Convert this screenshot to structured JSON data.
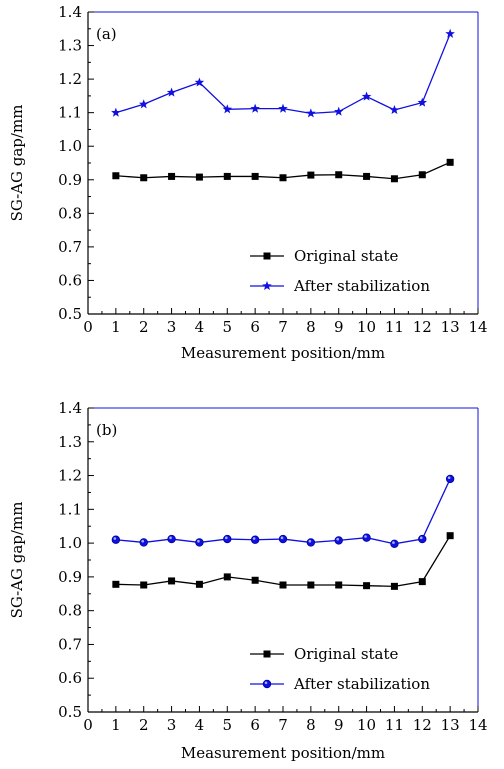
{
  "chart_data": [
    {
      "type": "line",
      "panel_label": "(a)",
      "xlabel": "Measurement position/mm",
      "ylabel": "SG-AG gap/mm",
      "xlim": [
        0,
        14
      ],
      "ylim": [
        0.5,
        1.4
      ],
      "xticks": [
        0,
        1,
        2,
        3,
        4,
        5,
        6,
        7,
        8,
        9,
        10,
        11,
        12,
        13,
        14
      ],
      "yticks": [
        "0.5",
        "0.6",
        "0.7",
        "0.8",
        "0.9",
        "1.0",
        "1.1",
        "1.2",
        "1.3",
        "1.4"
      ],
      "legend_position": "bottom-right",
      "x": [
        1,
        2,
        3,
        4,
        5,
        6,
        7,
        8,
        9,
        10,
        11,
        12,
        13
      ],
      "series": [
        {
          "name": "Original state",
          "marker": "square",
          "color": "#000000",
          "values": [
            0.912,
            0.906,
            0.91,
            0.908,
            0.91,
            0.91,
            0.906,
            0.914,
            0.915,
            0.91,
            0.903,
            0.915,
            0.952
          ]
        },
        {
          "name": "After stabilization",
          "marker": "star",
          "color": "#1010e0",
          "values": [
            1.1,
            1.125,
            1.16,
            1.19,
            1.11,
            1.112,
            1.112,
            1.098,
            1.103,
            1.148,
            1.108,
            1.13,
            1.335
          ]
        }
      ]
    },
    {
      "type": "line",
      "panel_label": "(b)",
      "xlabel": "Measurement position/mm",
      "ylabel": "SG-AG gap/mm",
      "xlim": [
        0,
        14
      ],
      "ylim": [
        0.5,
        1.4
      ],
      "xticks": [
        0,
        1,
        2,
        3,
        4,
        5,
        6,
        7,
        8,
        9,
        10,
        11,
        12,
        13,
        14
      ],
      "yticks": [
        "0.5",
        "0.6",
        "0.7",
        "0.8",
        "0.9",
        "1.0",
        "1.1",
        "1.2",
        "1.3",
        "1.4"
      ],
      "legend_position": "bottom-right",
      "x": [
        1,
        2,
        3,
        4,
        5,
        6,
        7,
        8,
        9,
        10,
        11,
        12,
        13
      ],
      "series": [
        {
          "name": "Original state",
          "marker": "square",
          "color": "#000000",
          "values": [
            0.878,
            0.876,
            0.888,
            0.878,
            0.9,
            0.89,
            0.876,
            0.876,
            0.876,
            0.874,
            0.872,
            0.886,
            1.022
          ]
        },
        {
          "name": "After stabilization",
          "marker": "circle",
          "color": "#1010e0",
          "values": [
            1.01,
            1.002,
            1.012,
            1.002,
            1.012,
            1.01,
            1.012,
            1.002,
            1.008,
            1.016,
            0.998,
            1.012,
            1.19
          ]
        }
      ]
    }
  ]
}
